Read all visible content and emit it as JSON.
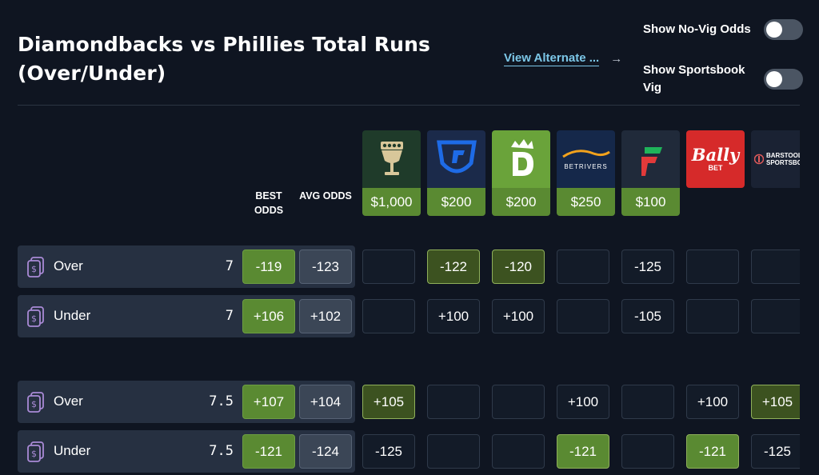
{
  "header": {
    "title": "Diamondbacks vs Phillies Total Runs (Over/Under)",
    "view_alternate": "View Alternate ...",
    "toggles": [
      {
        "label": "Show No-Vig Odds",
        "on": false
      },
      {
        "label": "Show Sportsbook Vig",
        "on": false
      }
    ]
  },
  "columns": {
    "best": "BEST ODDS",
    "avg": "AVG ODDS"
  },
  "sportsbooks": [
    {
      "name": "chalice-trophy",
      "bonus": "$1,000"
    },
    {
      "name": "fanduel",
      "bonus": "$200"
    },
    {
      "name": "draftkings",
      "bonus": "$200"
    },
    {
      "name": "betrivers",
      "logo_text": "BETRIVERS",
      "bonus": "$250"
    },
    {
      "name": "fanatics",
      "bonus": "$100"
    },
    {
      "name": "bally-bet",
      "logo_text_1": "Bally",
      "logo_text_2": "BET"
    },
    {
      "name": "barstool-sportsbook",
      "logo_text_1": "BARSTOOL",
      "logo_text_2": "SPORTSBOOK"
    }
  ],
  "rows": [
    {
      "side": "Over",
      "line": "7",
      "best": "-119",
      "avg": "-123",
      "odds": [
        "",
        "-122",
        "-120",
        "",
        "-125",
        "",
        ""
      ]
    },
    {
      "side": "Under",
      "line": "7",
      "best": "+106",
      "avg": "+102",
      "odds": [
        "",
        "+100",
        "+100",
        "",
        "-105",
        "",
        ""
      ]
    },
    {
      "side": "Over",
      "line": "7.5",
      "best": "+107",
      "avg": "+104",
      "odds": [
        "+105",
        "",
        "",
        "+100",
        "",
        "+100",
        "+105"
      ]
    },
    {
      "side": "Under",
      "line": "7.5",
      "best": "-121",
      "avg": "-124",
      "odds": [
        "-125",
        "",
        "",
        "-121",
        "",
        "-121",
        "-125"
      ]
    }
  ],
  "colors": {
    "background": "#0f1521",
    "accent_green": "#5a8a32",
    "link": "#7cc7e8"
  }
}
